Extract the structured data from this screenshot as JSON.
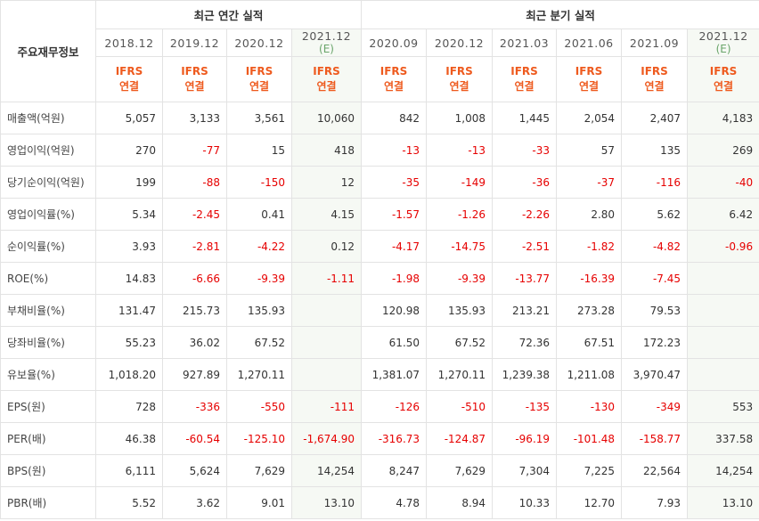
{
  "table": {
    "main_label": "주요재무정보",
    "group_annual": "최근 연간 실적",
    "group_quarterly": "최근 분기 실적",
    "periods": [
      {
        "label": "2018.12",
        "est": ""
      },
      {
        "label": "2019.12",
        "est": ""
      },
      {
        "label": "2020.12",
        "est": ""
      },
      {
        "label": "2021.12",
        "est": "(E)"
      },
      {
        "label": "2020.09",
        "est": ""
      },
      {
        "label": "2020.12",
        "est": ""
      },
      {
        "label": "2021.03",
        "est": ""
      },
      {
        "label": "2021.06",
        "est": ""
      },
      {
        "label": "2021.09",
        "est": ""
      },
      {
        "label": "2021.12",
        "est": "(E)"
      }
    ],
    "ifrs_top": "IFRS",
    "ifrs_bottom": "연결",
    "rows": [
      {
        "label": "매출액(억원)",
        "values": [
          "5,057",
          "3,133",
          "3,561",
          "10,060",
          "842",
          "1,008",
          "1,445",
          "2,054",
          "2,407",
          "4,183"
        ]
      },
      {
        "label": "영업이익(억원)",
        "values": [
          "270",
          "-77",
          "15",
          "418",
          "-13",
          "-13",
          "-33",
          "57",
          "135",
          "269"
        ]
      },
      {
        "label": "당기순이익(억원)",
        "values": [
          "199",
          "-88",
          "-150",
          "12",
          "-35",
          "-149",
          "-36",
          "-37",
          "-116",
          "-40"
        ]
      },
      {
        "label": "영업이익률(%)",
        "values": [
          "5.34",
          "-2.45",
          "0.41",
          "4.15",
          "-1.57",
          "-1.26",
          "-2.26",
          "2.80",
          "5.62",
          "6.42"
        ]
      },
      {
        "label": "순이익률(%)",
        "values": [
          "3.93",
          "-2.81",
          "-4.22",
          "0.12",
          "-4.17",
          "-14.75",
          "-2.51",
          "-1.82",
          "-4.82",
          "-0.96"
        ]
      },
      {
        "label": "ROE(%)",
        "values": [
          "14.83",
          "-6.66",
          "-9.39",
          "-1.11",
          "-1.98",
          "-9.39",
          "-13.77",
          "-16.39",
          "-7.45",
          ""
        ]
      },
      {
        "label": "부채비율(%)",
        "values": [
          "131.47",
          "215.73",
          "135.93",
          "",
          "120.98",
          "135.93",
          "213.21",
          "273.28",
          "79.53",
          ""
        ]
      },
      {
        "label": "당좌비율(%)",
        "values": [
          "55.23",
          "36.02",
          "67.52",
          "",
          "61.50",
          "67.52",
          "72.36",
          "67.51",
          "172.23",
          ""
        ]
      },
      {
        "label": "유보율(%)",
        "values": [
          "1,018.20",
          "927.89",
          "1,270.11",
          "",
          "1,381.07",
          "1,270.11",
          "1,239.38",
          "1,211.08",
          "3,970.47",
          ""
        ]
      },
      {
        "label": "EPS(원)",
        "values": [
          "728",
          "-336",
          "-550",
          "-111",
          "-126",
          "-510",
          "-135",
          "-130",
          "-349",
          "553"
        ]
      },
      {
        "label": "PER(배)",
        "values": [
          "46.38",
          "-60.54",
          "-125.10",
          "-1,674.90",
          "-316.73",
          "-124.87",
          "-96.19",
          "-101.48",
          "-158.77",
          "337.58"
        ]
      },
      {
        "label": "BPS(원)",
        "values": [
          "6,111",
          "5,624",
          "7,629",
          "14,254",
          "8,247",
          "7,629",
          "7,304",
          "7,225",
          "22,564",
          "14,254"
        ]
      },
      {
        "label": "PBR(배)",
        "values": [
          "5.52",
          "3.62",
          "9.01",
          "13.10",
          "4.78",
          "8.94",
          "10.33",
          "12.70",
          "7.93",
          "13.10"
        ]
      }
    ],
    "colors": {
      "negative": "#e60000",
      "ifrs": "#ee5a1e",
      "estimate_bg": "#f6f9f4",
      "estimate_text": "#6aa56a"
    }
  }
}
